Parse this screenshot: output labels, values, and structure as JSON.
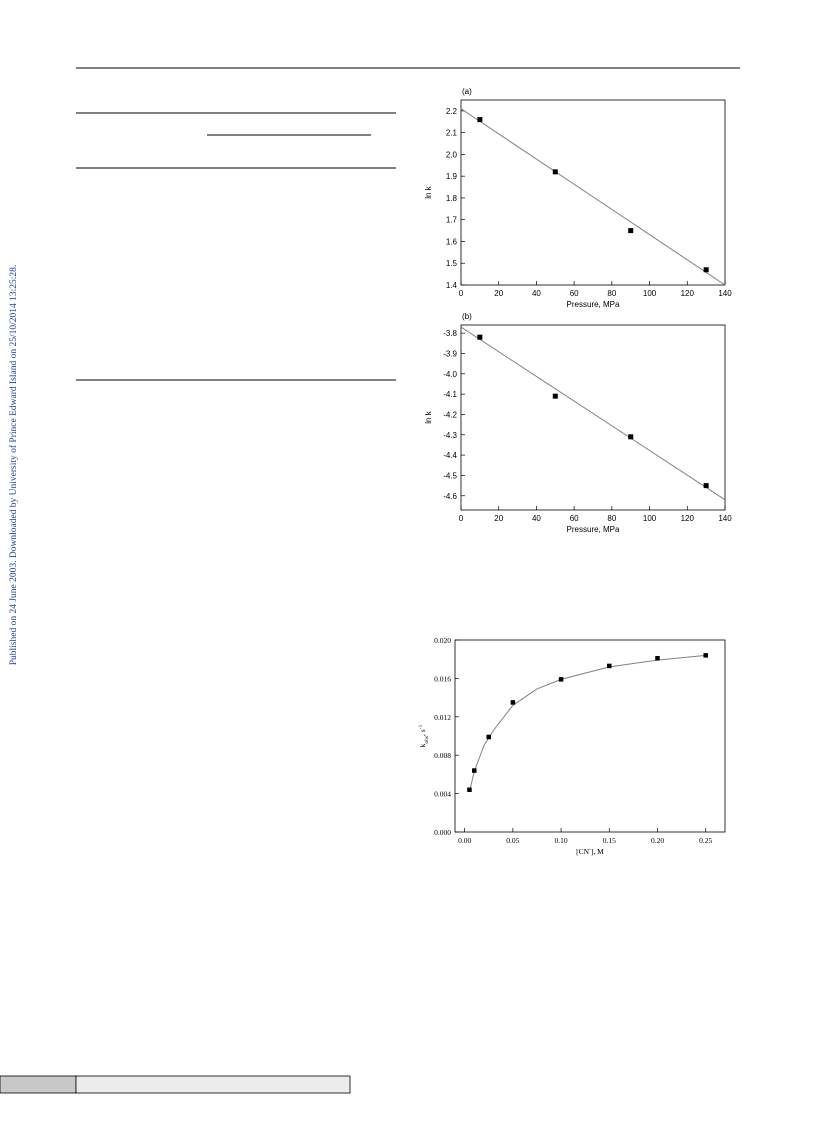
{
  "side_note": "Published on 24 June 2003. Downloaded by University of Prince Edward Island on 25/10/2014 13:25:28.",
  "chart_data": [
    {
      "type": "scatter",
      "label": "(a)",
      "x_label": "Pressure, MPa",
      "y_label": "ln k",
      "x": [
        10,
        50,
        90,
        130
      ],
      "values": [
        2.16,
        1.92,
        1.65,
        1.47
      ],
      "color": "#000000",
      "fit": {
        "x": [
          0,
          140
        ],
        "values": [
          2.21,
          1.4
        ],
        "color": "#808080"
      },
      "xlim": [
        0,
        140
      ],
      "xticks": [
        0,
        20,
        40,
        60,
        80,
        100,
        120,
        140
      ],
      "ylim": [
        1.4,
        2.25
      ],
      "yticks": [
        1.4,
        1.5,
        1.6,
        1.7,
        1.8,
        1.9,
        {
          "value": 2,
          "label": "2.0"
        },
        2.1,
        2.2
      ]
    },
    {
      "type": "scatter",
      "label": "(b)",
      "x_label": "Pressure, MPa",
      "y_label": "ln k",
      "x": [
        10,
        50,
        90,
        130
      ],
      "values": [
        -3.82,
        -4.11,
        -4.31,
        -4.55
      ],
      "color": "#000000",
      "fit": {
        "x": [
          0,
          140
        ],
        "values": [
          -3.77,
          -4.62
        ],
        "color": "#808080"
      },
      "xlim": [
        0,
        140
      ],
      "xticks": [
        0,
        20,
        40,
        60,
        80,
        100,
        120,
        140
      ],
      "ylim": [
        -4.67,
        -3.76
      ],
      "yticks": [
        -4.6,
        -4.5,
        -4.4,
        -4.3,
        -4.2,
        -4.1,
        {
          "value": -4,
          "label": "-4.0"
        },
        -3.9,
        -3.8
      ]
    },
    {
      "type": "scatter",
      "x_label": {
        "main": "[CN",
        "sup": "-",
        "rest": "], M"
      },
      "y_label": {
        "main": "k",
        "sub": "obs",
        "rest": ", s",
        "sup": "-1"
      },
      "x": [
        0.005,
        0.01,
        0.025,
        0.05,
        0.1,
        0.15,
        0.2,
        0.25
      ],
      "values": [
        0.0044,
        0.0064,
        0.0099,
        0.0135,
        0.0159,
        0.0173,
        0.0181,
        0.0184
      ],
      "color": "#000000",
      "fit": {
        "x": [
          0.005,
          0.01,
          0.02,
          0.03,
          0.05,
          0.075,
          0.1,
          0.15,
          0.2,
          0.25
        ],
        "values": [
          0.0042,
          0.0063,
          0.009,
          0.0106,
          0.0132,
          0.0149,
          0.0159,
          0.0172,
          0.0179,
          0.0184
        ],
        "color": "#808080"
      },
      "xlim": [
        -0.01,
        0.27
      ],
      "xticks": [
        {
          "value": 0,
          "label": "0.00"
        },
        {
          "value": 0.05,
          "label": "0.05"
        },
        {
          "value": 0.1,
          "label": "0.10"
        },
        {
          "value": 0.15,
          "label": "0.15"
        },
        {
          "value": 0.2,
          "label": "0.20"
        },
        {
          "value": 0.25,
          "label": "0.25"
        }
      ],
      "ylim": [
        0,
        0.02
      ],
      "yticks": [
        {
          "value": 0,
          "label": "0.000"
        },
        {
          "value": 0.004,
          "label": "0.004"
        },
        {
          "value": 0.008,
          "label": "0.008"
        },
        {
          "value": 0.012,
          "label": "0.012"
        },
        {
          "value": 0.016,
          "label": "0.016"
        },
        {
          "value": 0.02,
          "label": "0.020"
        }
      ]
    }
  ]
}
